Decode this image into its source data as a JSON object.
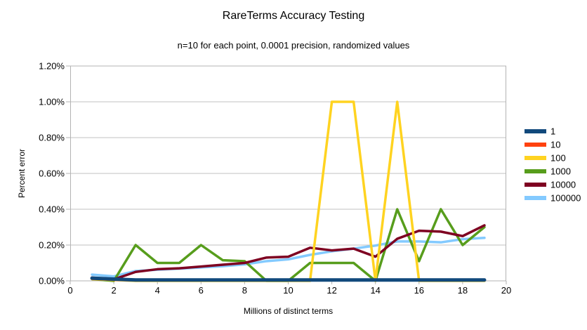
{
  "chart_data": {
    "type": "line",
    "title": "RareTerms Accuracy Testing",
    "subtitle": "n=10 for each point, 0.0001 precision, randomized values",
    "xlabel": "Millions of distinct terms",
    "ylabel": "Percent error",
    "xlim": [
      0,
      20
    ],
    "ylim_percent": [
      0,
      1.2
    ],
    "xticks": [
      0,
      2,
      4,
      6,
      8,
      10,
      12,
      14,
      16,
      18,
      20
    ],
    "yticks_percent": [
      0,
      0.2,
      0.4,
      0.6,
      0.8,
      1.0,
      1.2
    ],
    "ytick_labels": [
      "0.00%",
      "0.20%",
      "0.40%",
      "0.60%",
      "0.80%",
      "1.00%",
      "1.20%"
    ],
    "grid": "horizontal",
    "legend_position": "right",
    "x": [
      1,
      2,
      3,
      4,
      5,
      6,
      7,
      8,
      9,
      10,
      11,
      12,
      13,
      14,
      15,
      16,
      17,
      18,
      19
    ],
    "series": [
      {
        "name": "1",
        "color": "#11497c",
        "values": [
          0.015,
          0.01,
          0.005,
          0.005,
          0.005,
          0.005,
          0.005,
          0.005,
          0.005,
          0.005,
          0.005,
          0.005,
          0.005,
          0.005,
          0.005,
          0.005,
          0.005,
          0.005,
          0.005
        ]
      },
      {
        "name": "10",
        "color": "#ff420e",
        "values": [
          0.012,
          0.006,
          0.003,
          0.003,
          0.003,
          0.003,
          0.003,
          0.003,
          0.003,
          0.003,
          0.003,
          0.003,
          0.003,
          0.003,
          0.003,
          0.003,
          0.003,
          0.003,
          0.003
        ]
      },
      {
        "name": "100",
        "color": "#ffd320",
        "values": [
          0.01,
          0.005,
          0,
          0,
          0,
          0,
          0,
          0,
          0,
          0,
          0,
          1.0,
          1.0,
          0,
          1.0,
          0,
          0,
          0,
          0
        ]
      },
      {
        "name": "1000",
        "color": "#579d1c",
        "values": [
          0.01,
          0,
          0.2,
          0.1,
          0.1,
          0.2,
          0.115,
          0.11,
          0,
          0,
          0.1,
          0.1,
          0.1,
          0,
          0.4,
          0.11,
          0.4,
          0.2,
          0.3
        ]
      },
      {
        "name": "10000",
        "color": "#7e0021",
        "values": [
          0.018,
          0.008,
          0.05,
          0.065,
          0.07,
          0.08,
          0.09,
          0.1,
          0.13,
          0.135,
          0.185,
          0.17,
          0.18,
          0.135,
          0.235,
          0.28,
          0.275,
          0.25,
          0.31
        ]
      },
      {
        "name": "100000",
        "color": "#83caff",
        "values": [
          0.035,
          0.025,
          0.055,
          0.062,
          0.068,
          0.075,
          0.082,
          0.092,
          0.11,
          0.12,
          0.145,
          0.165,
          0.18,
          0.197,
          0.22,
          0.22,
          0.215,
          0.233,
          0.24
        ]
      }
    ],
    "draw_order": [
      5,
      3,
      4,
      2,
      1,
      0
    ],
    "frame_color": "#b3b3b3",
    "grid_color": "#c0c0c0",
    "text_color": "#000000"
  }
}
